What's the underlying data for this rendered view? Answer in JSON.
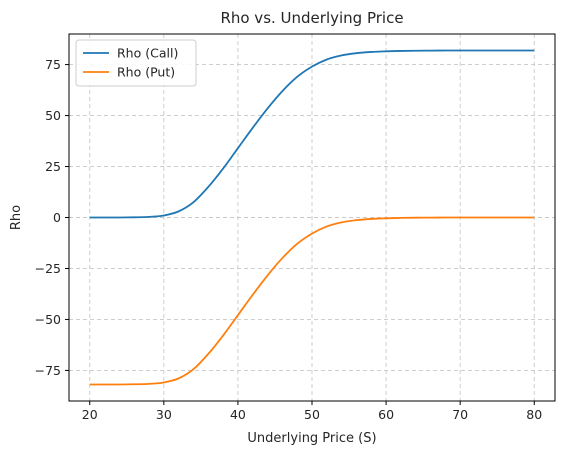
{
  "chart_data": {
    "type": "line",
    "title": "Rho vs. Underlying Price",
    "xlabel": "Underlying Price (S)",
    "ylabel": "Rho",
    "xlim": [
      17.2,
      82.8
    ],
    "ylim": [
      -90,
      90
    ],
    "xticks": [
      20,
      30,
      40,
      50,
      60,
      70,
      80
    ],
    "yticks": [
      -75,
      -50,
      -25,
      0,
      25,
      50,
      75
    ],
    "grid": true,
    "legend_position": "top-left",
    "series": [
      {
        "name": "Rho (Call)",
        "color": "#1f77b4",
        "x": [
          20,
          22,
          24,
          26,
          28,
          30,
          32,
          34,
          36,
          38,
          40,
          42,
          44,
          46,
          48,
          50,
          52,
          54,
          56,
          58,
          60,
          62,
          64,
          66,
          68,
          70,
          72,
          74,
          76,
          78,
          80
        ],
        "y": [
          0.0,
          0.0,
          0.0,
          0.1,
          0.3,
          1.0,
          3.0,
          7.5,
          15.0,
          24.0,
          34.0,
          44.0,
          53.5,
          62.0,
          69.0,
          74.0,
          77.5,
          79.5,
          80.6,
          81.2,
          81.5,
          81.7,
          81.8,
          81.85,
          81.9,
          81.9,
          81.9,
          81.9,
          81.9,
          81.9,
          81.9
        ]
      },
      {
        "name": "Rho (Put)",
        "color": "#ff7f0e",
        "x": [
          20,
          22,
          24,
          26,
          28,
          30,
          32,
          34,
          36,
          38,
          40,
          42,
          44,
          46,
          48,
          50,
          52,
          54,
          56,
          58,
          60,
          62,
          64,
          66,
          68,
          70,
          72,
          74,
          76,
          78,
          80
        ],
        "y": [
          -81.9,
          -81.9,
          -81.9,
          -81.8,
          -81.6,
          -80.9,
          -78.9,
          -74.4,
          -66.9,
          -57.9,
          -47.9,
          -37.9,
          -28.4,
          -19.9,
          -12.9,
          -7.9,
          -4.4,
          -2.4,
          -1.3,
          -0.7,
          -0.4,
          -0.2,
          -0.1,
          -0.05,
          0.0,
          0.0,
          0.0,
          0.0,
          0.0,
          0.0,
          0.0
        ]
      }
    ]
  },
  "colors": {
    "call": "#1f77b4",
    "put": "#ff7f0e",
    "grid": "#c8c8c8",
    "axis": "#000000"
  }
}
